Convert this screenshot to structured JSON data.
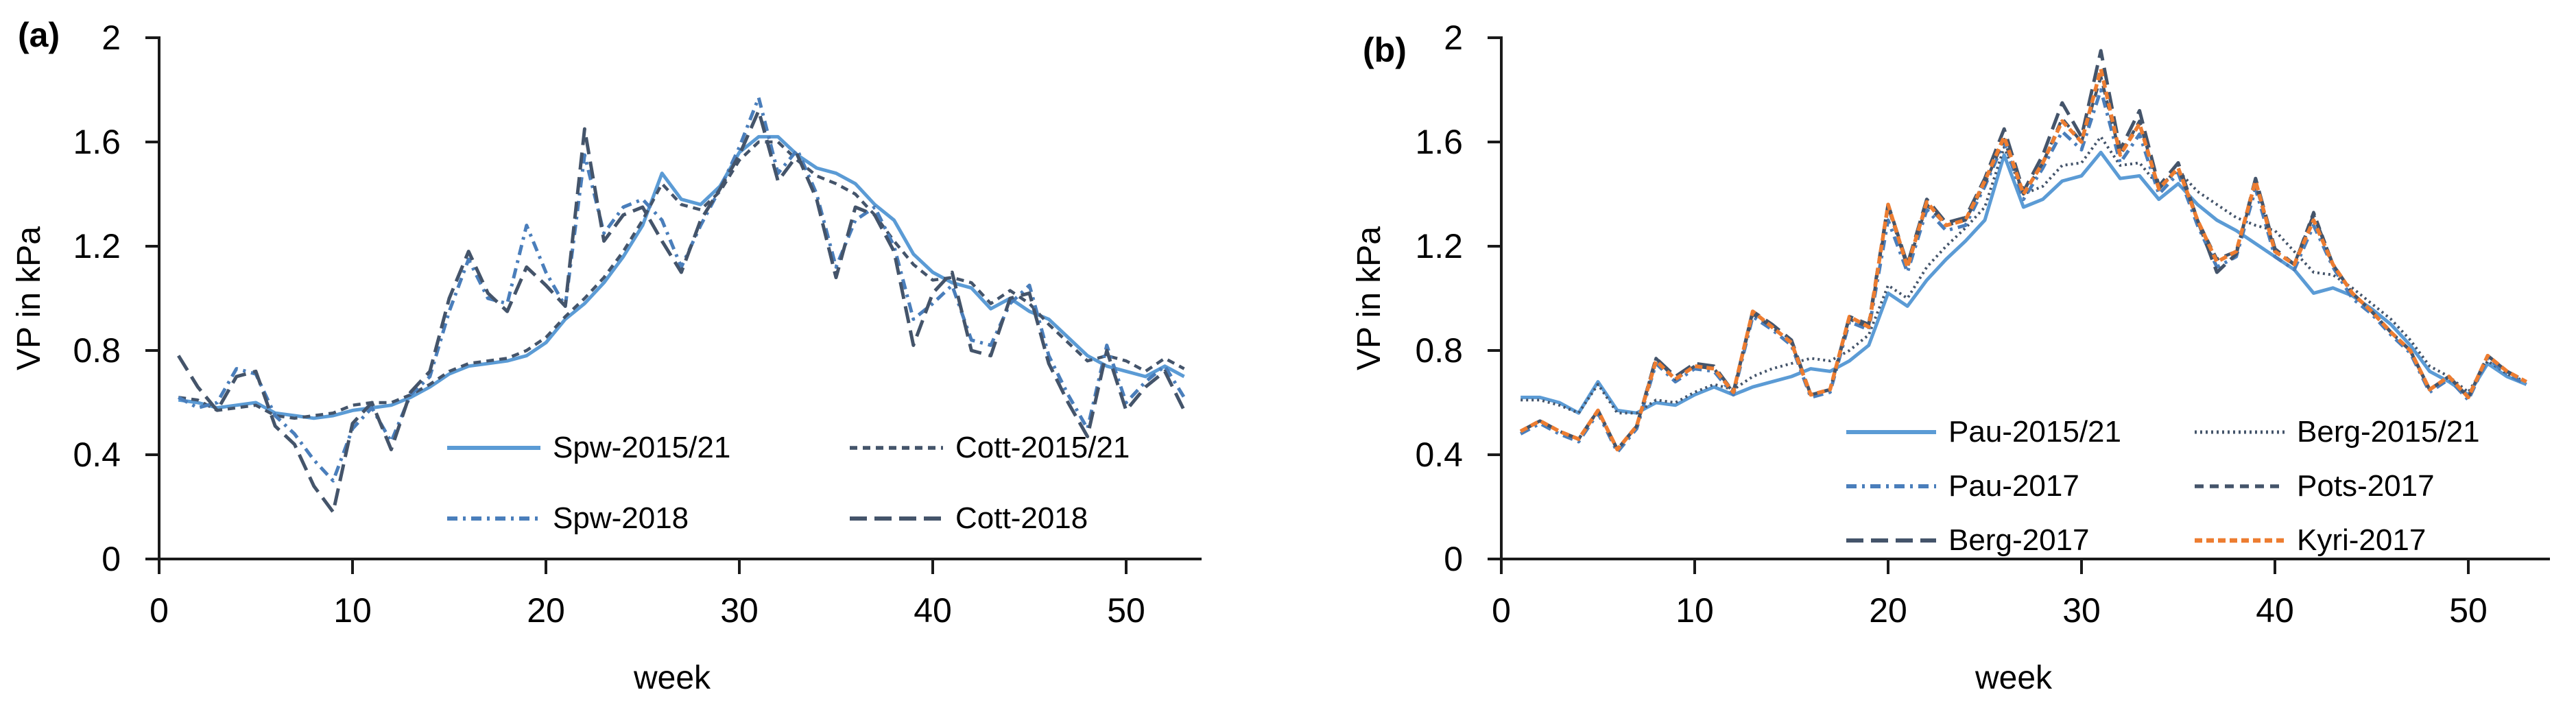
{
  "figure": {
    "background": "#ffffff",
    "axis_color": "#1a1a1a",
    "text_color": "#000000"
  },
  "chart_data": [
    {
      "type": "line",
      "panel_label": "(a)",
      "xlabel": "week",
      "ylabel": "VP in kPa",
      "xlim": [
        0,
        54
      ],
      "ylim": [
        0,
        2
      ],
      "grid": false,
      "legend_position": "inside-bottom-center",
      "legend_columns": 2,
      "x_ticks": [
        0,
        10,
        20,
        30,
        40,
        50
      ],
      "x_tick_labels": [
        "0",
        "10",
        "20",
        "30",
        "40",
        "50"
      ],
      "y_ticks": [
        0,
        0.4,
        0.8,
        1.2,
        1.6,
        2
      ],
      "y_tick_labels": [
        "0",
        "0.4",
        "0.8",
        "1.2",
        "1.6",
        "2"
      ],
      "x": [
        1,
        2,
        3,
        4,
        5,
        6,
        7,
        8,
        9,
        10,
        11,
        12,
        13,
        14,
        15,
        16,
        17,
        18,
        19,
        20,
        21,
        22,
        23,
        24,
        25,
        26,
        27,
        28,
        29,
        30,
        31,
        32,
        33,
        34,
        35,
        36,
        37,
        38,
        39,
        40,
        41,
        42,
        43,
        44,
        45,
        46,
        47,
        48,
        49,
        50,
        51,
        52,
        53
      ],
      "series": [
        {
          "name": "Spw-2015/21",
          "color": "#5B9BD5",
          "style": "solid",
          "dasharray": "",
          "width": 5,
          "values": [
            0.61,
            0.6,
            0.58,
            0.59,
            0.6,
            0.56,
            0.55,
            0.54,
            0.55,
            0.57,
            0.58,
            0.59,
            0.62,
            0.66,
            0.71,
            0.74,
            0.75,
            0.76,
            0.78,
            0.83,
            0.92,
            0.98,
            1.06,
            1.16,
            1.28,
            1.48,
            1.38,
            1.36,
            1.43,
            1.56,
            1.62,
            1.62,
            1.55,
            1.5,
            1.48,
            1.44,
            1.36,
            1.3,
            1.17,
            1.1,
            1.06,
            1.04,
            0.96,
            1.0,
            0.95,
            0.92,
            0.85,
            0.78,
            0.74,
            0.72,
            0.7,
            0.74,
            0.7
          ]
        },
        {
          "name": "Cott-2015/21",
          "color": "#44546A",
          "style": "dashed",
          "dasharray": "11 8",
          "width": 4.5,
          "values": [
            0.62,
            0.61,
            0.57,
            0.58,
            0.59,
            0.55,
            0.54,
            0.55,
            0.56,
            0.59,
            0.6,
            0.6,
            0.63,
            0.67,
            0.72,
            0.75,
            0.76,
            0.77,
            0.8,
            0.85,
            0.93,
            1.0,
            1.08,
            1.18,
            1.3,
            1.44,
            1.36,
            1.34,
            1.41,
            1.53,
            1.6,
            1.6,
            1.53,
            1.47,
            1.44,
            1.4,
            1.32,
            1.22,
            1.13,
            1.07,
            1.08,
            1.06,
            0.98,
            1.03,
            0.98,
            0.9,
            0.83,
            0.76,
            0.78,
            0.76,
            0.72,
            0.77,
            0.73
          ]
        },
        {
          "name": "Spw-2018",
          "color": "#4A7EBB",
          "style": "dashdot",
          "dasharray": "15 8 4 8",
          "width": 5,
          "values": [
            0.62,
            0.58,
            0.6,
            0.73,
            0.71,
            0.55,
            0.48,
            0.38,
            0.3,
            0.5,
            0.58,
            0.45,
            0.63,
            0.7,
            0.95,
            1.15,
            1.0,
            0.98,
            1.28,
            1.1,
            0.97,
            1.55,
            1.25,
            1.35,
            1.38,
            1.3,
            1.12,
            1.28,
            1.42,
            1.58,
            1.77,
            1.48,
            1.57,
            1.4,
            1.12,
            1.3,
            1.35,
            1.2,
            0.92,
            0.98,
            1.05,
            0.84,
            0.82,
            0.98,
            1.05,
            0.78,
            0.63,
            0.5,
            0.82,
            0.6,
            0.68,
            0.74,
            0.62
          ]
        },
        {
          "name": "Cott-2018",
          "color": "#44546A",
          "style": "longdash",
          "dasharray": "25 11",
          "width": 5,
          "values": [
            0.78,
            0.66,
            0.57,
            0.7,
            0.72,
            0.51,
            0.44,
            0.28,
            0.18,
            0.52,
            0.6,
            0.42,
            0.64,
            0.72,
            1.0,
            1.18,
            1.02,
            0.95,
            1.12,
            1.05,
            0.97,
            1.65,
            1.22,
            1.32,
            1.35,
            1.22,
            1.1,
            1.3,
            1.42,
            1.55,
            1.72,
            1.45,
            1.55,
            1.38,
            1.08,
            1.35,
            1.32,
            1.18,
            0.82,
            1.02,
            1.1,
            0.8,
            0.78,
            1.0,
            1.02,
            0.75,
            0.6,
            0.47,
            0.8,
            0.57,
            0.66,
            0.72,
            0.57
          ]
        }
      ]
    },
    {
      "type": "line",
      "panel_label": "(b)",
      "xlabel": "week",
      "ylabel": "VP in kPa",
      "xlim": [
        0,
        54
      ],
      "ylim": [
        0,
        2
      ],
      "grid": false,
      "legend_position": "inside-bottom-center",
      "legend_columns": 2,
      "x_ticks": [
        0,
        10,
        20,
        30,
        40,
        50
      ],
      "x_tick_labels": [
        "0",
        "10",
        "20",
        "30",
        "40",
        "50"
      ],
      "y_ticks": [
        0,
        0.4,
        0.8,
        1.2,
        1.6,
        2
      ],
      "y_tick_labels": [
        "0",
        "0.4",
        "0.8",
        "1.2",
        "1.6",
        "2"
      ],
      "x": [
        1,
        2,
        3,
        4,
        5,
        6,
        7,
        8,
        9,
        10,
        11,
        12,
        13,
        14,
        15,
        16,
        17,
        18,
        19,
        20,
        21,
        22,
        23,
        24,
        25,
        26,
        27,
        28,
        29,
        30,
        31,
        32,
        33,
        34,
        35,
        36,
        37,
        38,
        39,
        40,
        41,
        42,
        43,
        44,
        45,
        46,
        47,
        48,
        49,
        50,
        51,
        52,
        53
      ],
      "series": [
        {
          "name": "Pau-2015/21",
          "color": "#5B9BD5",
          "style": "solid",
          "dasharray": "",
          "width": 5,
          "values": [
            0.62,
            0.62,
            0.6,
            0.56,
            0.68,
            0.57,
            0.56,
            0.6,
            0.59,
            0.63,
            0.66,
            0.63,
            0.66,
            0.68,
            0.7,
            0.73,
            0.72,
            0.76,
            0.82,
            1.02,
            0.97,
            1.07,
            1.15,
            1.22,
            1.3,
            1.55,
            1.35,
            1.38,
            1.45,
            1.47,
            1.56,
            1.46,
            1.47,
            1.38,
            1.44,
            1.36,
            1.3,
            1.26,
            1.21,
            1.16,
            1.11,
            1.02,
            1.04,
            1.01,
            0.96,
            0.9,
            0.82,
            0.72,
            0.68,
            0.63,
            0.75,
            0.7,
            0.67
          ]
        },
        {
          "name": "Berg-2015/21",
          "color": "#44546A",
          "style": "dotted",
          "dasharray": "3 5",
          "width": 4,
          "values": [
            0.61,
            0.61,
            0.59,
            0.56,
            0.67,
            0.56,
            0.56,
            0.61,
            0.6,
            0.64,
            0.67,
            0.65,
            0.7,
            0.73,
            0.75,
            0.77,
            0.76,
            0.8,
            0.86,
            1.05,
            1.0,
            1.12,
            1.2,
            1.27,
            1.35,
            1.58,
            1.4,
            1.43,
            1.51,
            1.52,
            1.62,
            1.51,
            1.52,
            1.43,
            1.49,
            1.41,
            1.36,
            1.31,
            1.28,
            1.26,
            1.18,
            1.1,
            1.09,
            1.04,
            0.98,
            0.92,
            0.84,
            0.74,
            0.7,
            0.64,
            0.76,
            0.71,
            0.68
          ]
        },
        {
          "name": "Pau-2017",
          "color": "#4A7EBB",
          "style": "dashdot",
          "dasharray": "15 8 4 8",
          "width": 5,
          "values": [
            0.48,
            0.52,
            0.48,
            0.45,
            0.56,
            0.41,
            0.5,
            0.75,
            0.68,
            0.73,
            0.72,
            0.63,
            0.93,
            0.88,
            0.82,
            0.62,
            0.64,
            0.91,
            0.88,
            1.3,
            1.1,
            1.34,
            1.26,
            1.28,
            1.43,
            1.6,
            1.38,
            1.5,
            1.64,
            1.57,
            1.8,
            1.52,
            1.63,
            1.4,
            1.48,
            1.28,
            1.12,
            1.16,
            1.42,
            1.16,
            1.11,
            1.28,
            1.12,
            1.0,
            0.94,
            0.86,
            0.79,
            0.64,
            0.69,
            0.61,
            0.77,
            0.71,
            0.67
          ]
        },
        {
          "name": "Pots-2017",
          "color": "#44546A",
          "style": "dashed",
          "dasharray": "13 9",
          "width": 4.5,
          "values": [
            0.49,
            0.53,
            0.49,
            0.46,
            0.57,
            0.42,
            0.51,
            0.77,
            0.69,
            0.74,
            0.73,
            0.64,
            0.94,
            0.89,
            0.83,
            0.63,
            0.65,
            0.92,
            0.89,
            1.35,
            1.12,
            1.36,
            1.28,
            1.3,
            1.44,
            1.61,
            1.4,
            1.52,
            1.69,
            1.6,
            1.85,
            1.55,
            1.68,
            1.42,
            1.5,
            1.3,
            1.15,
            1.18,
            1.44,
            1.18,
            1.13,
            1.33,
            1.13,
            1.02,
            0.95,
            0.87,
            0.8,
            0.65,
            0.7,
            0.62,
            0.78,
            0.72,
            0.68
          ]
        },
        {
          "name": "Berg-2017",
          "color": "#44546A",
          "style": "longdash",
          "dasharray": "25 11",
          "width": 5,
          "values": [
            0.49,
            0.53,
            0.49,
            0.46,
            0.57,
            0.42,
            0.51,
            0.77,
            0.7,
            0.75,
            0.74,
            0.64,
            0.95,
            0.9,
            0.84,
            0.63,
            0.65,
            0.93,
            0.9,
            1.36,
            1.13,
            1.38,
            1.29,
            1.31,
            1.46,
            1.65,
            1.41,
            1.55,
            1.75,
            1.62,
            1.95,
            1.57,
            1.72,
            1.43,
            1.52,
            1.3,
            1.1,
            1.17,
            1.46,
            1.19,
            1.13,
            1.32,
            1.13,
            1.02,
            0.95,
            0.87,
            0.8,
            0.65,
            0.7,
            0.62,
            0.78,
            0.72,
            0.68
          ]
        },
        {
          "name": "Kyri-2017",
          "color": "#ED7D31",
          "style": "dashed",
          "dasharray": "11 6",
          "width": 5.5,
          "values": [
            0.49,
            0.53,
            0.49,
            0.46,
            0.57,
            0.42,
            0.51,
            0.76,
            0.69,
            0.74,
            0.73,
            0.64,
            0.95,
            0.89,
            0.83,
            0.63,
            0.65,
            0.93,
            0.89,
            1.36,
            1.12,
            1.37,
            1.28,
            1.3,
            1.45,
            1.62,
            1.4,
            1.52,
            1.68,
            1.6,
            1.88,
            1.55,
            1.67,
            1.42,
            1.5,
            1.3,
            1.14,
            1.18,
            1.45,
            1.18,
            1.13,
            1.3,
            1.13,
            1.02,
            0.95,
            0.87,
            0.8,
            0.65,
            0.7,
            0.62,
            0.78,
            0.72,
            0.68
          ]
        }
      ]
    }
  ]
}
